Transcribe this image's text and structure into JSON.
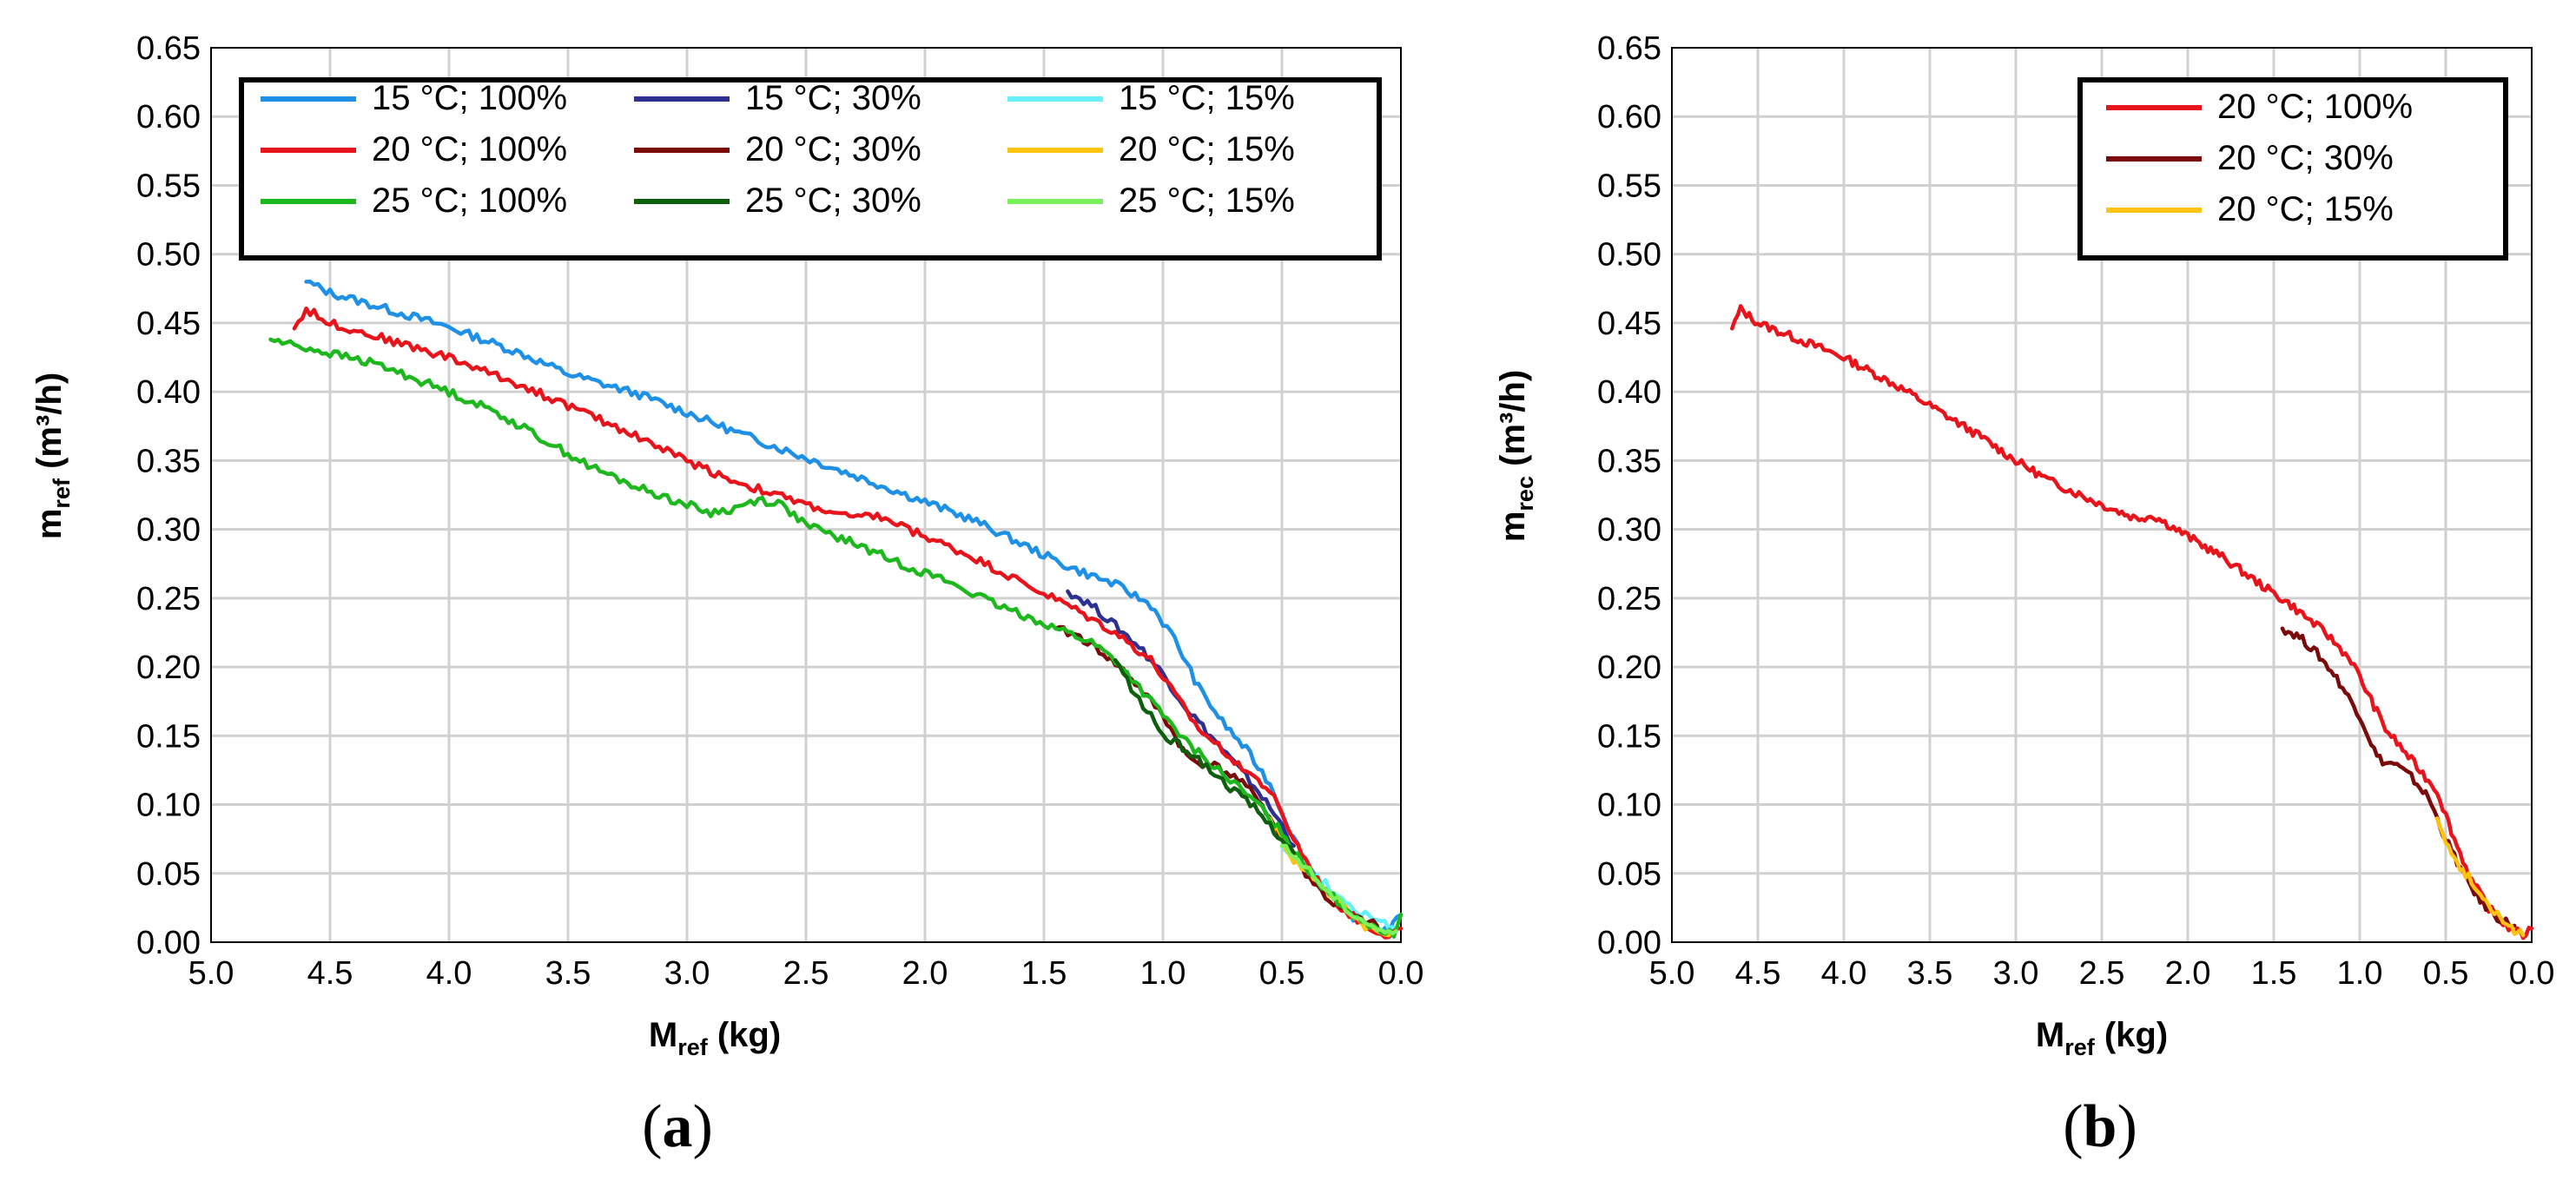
{
  "chart_data": [
    {
      "type": "line",
      "panel_label": "a",
      "xlabel": {
        "main": "M",
        "sub": "ref",
        "unit": " (kg)"
      },
      "ylabel": {
        "main": "m",
        "sub": "ref",
        "unit": " (m³/h)"
      },
      "xlim": [
        5.0,
        0.0
      ],
      "ylim": [
        0.0,
        0.65
      ],
      "x_reversed": true,
      "grid": true,
      "legend_position": "top",
      "xticks": [
        "5.0",
        "4.5",
        "4.0",
        "3.5",
        "3.0",
        "2.5",
        "2.0",
        "1.5",
        "1.0",
        "0.5",
        "0.0"
      ],
      "yticks": [
        "0.00",
        "0.05",
        "0.10",
        "0.15",
        "0.20",
        "0.25",
        "0.30",
        "0.35",
        "0.40",
        "0.45",
        "0.50",
        "0.55",
        "0.60",
        "0.65"
      ],
      "series": [
        {
          "name": "15 °C; 100%",
          "color": "#1E90E6",
          "points": [
            [
              4.6,
              0.48
            ],
            [
              4.5,
              0.472
            ],
            [
              4.3,
              0.462
            ],
            [
              4.0,
              0.447
            ],
            [
              3.7,
              0.428
            ],
            [
              3.5,
              0.413
            ],
            [
              3.2,
              0.398
            ],
            [
              3.0,
              0.385
            ],
            [
              2.8,
              0.371
            ],
            [
              2.5,
              0.352
            ],
            [
              2.2,
              0.333
            ],
            [
              2.0,
              0.32
            ],
            [
              1.8,
              0.307
            ],
            [
              1.6,
              0.29
            ],
            [
              1.4,
              0.273
            ],
            [
              1.2,
              0.26
            ],
            [
              1.05,
              0.245
            ],
            [
              0.95,
              0.22
            ],
            [
              0.85,
              0.185
            ],
            [
              0.75,
              0.16
            ],
            [
              0.65,
              0.14
            ],
            [
              0.55,
              0.115
            ],
            [
              0.45,
              0.075
            ],
            [
              0.35,
              0.045
            ],
            [
              0.25,
              0.025
            ],
            [
              0.15,
              0.012
            ],
            [
              0.05,
              0.008
            ],
            [
              0.0,
              0.02
            ]
          ]
        },
        {
          "name": "15 °C; 30%",
          "color": "#2E3192",
          "points": [
            [
              1.4,
              0.255
            ],
            [
              1.3,
              0.245
            ],
            [
              1.2,
              0.23
            ],
            [
              1.1,
              0.215
            ],
            [
              1.0,
              0.195
            ],
            [
              0.9,
              0.17
            ],
            [
              0.8,
              0.15
            ],
            [
              0.7,
              0.13
            ],
            [
              0.6,
              0.11
            ],
            [
              0.5,
              0.085
            ],
            [
              0.45,
              0.07
            ]
          ]
        },
        {
          "name": "15 °C; 15%",
          "color": "#66F0FF",
          "points": [
            [
              0.5,
              0.07
            ],
            [
              0.4,
              0.055
            ],
            [
              0.3,
              0.04
            ],
            [
              0.2,
              0.025
            ],
            [
              0.1,
              0.015
            ],
            [
              0.02,
              0.01
            ]
          ]
        },
        {
          "name": "20 °C; 100%",
          "color": "#E8141B",
          "points": [
            [
              4.65,
              0.446
            ],
            [
              4.6,
              0.46
            ],
            [
              4.5,
              0.45
            ],
            [
              4.3,
              0.44
            ],
            [
              4.0,
              0.425
            ],
            [
              3.7,
              0.405
            ],
            [
              3.5,
              0.39
            ],
            [
              3.2,
              0.367
            ],
            [
              3.0,
              0.35
            ],
            [
              2.8,
              0.335
            ],
            [
              2.5,
              0.318
            ],
            [
              2.3,
              0.308
            ],
            [
              2.2,
              0.31
            ],
            [
              2.0,
              0.295
            ],
            [
              1.8,
              0.28
            ],
            [
              1.6,
              0.262
            ],
            [
              1.4,
              0.245
            ],
            [
              1.2,
              0.225
            ],
            [
              1.05,
              0.205
            ],
            [
              0.95,
              0.18
            ],
            [
              0.85,
              0.155
            ],
            [
              0.75,
              0.14
            ],
            [
              0.65,
              0.125
            ],
            [
              0.55,
              0.11
            ],
            [
              0.45,
              0.075
            ],
            [
              0.35,
              0.045
            ],
            [
              0.25,
              0.025
            ],
            [
              0.15,
              0.012
            ],
            [
              0.05,
              0.005
            ],
            [
              0.0,
              0.01
            ]
          ]
        },
        {
          "name": "20 °C; 30%",
          "color": "#7B0A0A",
          "points": [
            [
              1.45,
              0.228
            ],
            [
              1.35,
              0.222
            ],
            [
              1.25,
              0.21
            ],
            [
              1.15,
              0.195
            ],
            [
              1.05,
              0.175
            ],
            [
              1.0,
              0.165
            ],
            [
              0.95,
              0.15
            ],
            [
              0.9,
              0.135
            ],
            [
              0.85,
              0.13
            ],
            [
              0.8,
              0.13
            ],
            [
              0.7,
              0.12
            ],
            [
              0.6,
              0.105
            ],
            [
              0.55,
              0.09
            ],
            [
              0.5,
              0.075
            ],
            [
              0.4,
              0.05
            ],
            [
              0.3,
              0.03
            ],
            [
              0.2,
              0.018
            ],
            [
              0.1,
              0.012
            ]
          ]
        },
        {
          "name": "20 °C; 15%",
          "color": "#FFC20E",
          "points": [
            [
              0.55,
              0.09
            ],
            [
              0.5,
              0.075
            ],
            [
              0.45,
              0.06
            ],
            [
              0.4,
              0.052
            ],
            [
              0.35,
              0.045
            ],
            [
              0.3,
              0.035
            ],
            [
              0.25,
              0.028
            ],
            [
              0.2,
              0.02
            ],
            [
              0.15,
              0.012
            ],
            [
              0.1,
              0.008
            ],
            [
              0.05,
              0.005
            ]
          ]
        },
        {
          "name": "25 °C; 100%",
          "color": "#1DB81D",
          "points": [
            [
              4.75,
              0.438
            ],
            [
              4.6,
              0.432
            ],
            [
              4.3,
              0.42
            ],
            [
              4.0,
              0.4
            ],
            [
              3.8,
              0.385
            ],
            [
              3.6,
              0.365
            ],
            [
              3.4,
              0.345
            ],
            [
              3.2,
              0.33
            ],
            [
              3.0,
              0.318
            ],
            [
              2.9,
              0.312
            ],
            [
              2.8,
              0.315
            ],
            [
              2.7,
              0.322
            ],
            [
              2.6,
              0.318
            ],
            [
              2.5,
              0.303
            ],
            [
              2.3,
              0.29
            ],
            [
              2.1,
              0.275
            ],
            [
              1.9,
              0.262
            ],
            [
              1.7,
              0.245
            ],
            [
              1.5,
              0.232
            ],
            [
              1.3,
              0.218
            ],
            [
              1.2,
              0.205
            ],
            [
              1.1,
              0.185
            ],
            [
              1.0,
              0.165
            ],
            [
              0.9,
              0.145
            ],
            [
              0.8,
              0.13
            ],
            [
              0.7,
              0.115
            ],
            [
              0.6,
              0.1
            ],
            [
              0.5,
              0.08
            ],
            [
              0.4,
              0.055
            ],
            [
              0.3,
              0.035
            ],
            [
              0.2,
              0.02
            ],
            [
              0.1,
              0.01
            ],
            [
              0.03,
              0.005
            ],
            [
              0.0,
              0.02
            ]
          ]
        },
        {
          "name": "25 °C; 30%",
          "color": "#0D5E0D",
          "points": [
            [
              1.2,
              0.205
            ],
            [
              1.15,
              0.19
            ],
            [
              1.1,
              0.175
            ],
            [
              1.05,
              0.165
            ],
            [
              1.0,
              0.15
            ],
            [
              0.95,
              0.145
            ],
            [
              0.9,
              0.14
            ],
            [
              0.8,
              0.125
            ],
            [
              0.7,
              0.11
            ],
            [
              0.6,
              0.095
            ],
            [
              0.5,
              0.075
            ],
            [
              0.45,
              0.065
            ]
          ]
        },
        {
          "name": "25 °C; 15%",
          "color": "#7CF25A",
          "points": [
            [
              0.5,
              0.07
            ],
            [
              0.45,
              0.062
            ],
            [
              0.4,
              0.055
            ],
            [
              0.35,
              0.045
            ],
            [
              0.3,
              0.035
            ],
            [
              0.25,
              0.028
            ],
            [
              0.2,
              0.02
            ],
            [
              0.15,
              0.015
            ],
            [
              0.1,
              0.01
            ],
            [
              0.05,
              0.006
            ],
            [
              0.02,
              0.008
            ]
          ]
        }
      ]
    },
    {
      "type": "line",
      "panel_label": "b",
      "xlabel": {
        "main": "M",
        "sub": "ref",
        "unit": " (kg)"
      },
      "ylabel": {
        "main": "m",
        "sub": "rec",
        "unit": " (m³/h)"
      },
      "xlim": [
        5.0,
        0.0
      ],
      "ylim": [
        0.0,
        0.65
      ],
      "x_reversed": true,
      "grid": true,
      "legend_position": "top-right",
      "xticks": [
        "5.0",
        "4.5",
        "4.0",
        "3.5",
        "3.0",
        "2.5",
        "2.0",
        "1.5",
        "1.0",
        "0.5",
        "0.0"
      ],
      "yticks": [
        "0.00",
        "0.05",
        "0.10",
        "0.15",
        "0.20",
        "0.25",
        "0.30",
        "0.35",
        "0.40",
        "0.45",
        "0.50",
        "0.55",
        "0.60",
        "0.65"
      ],
      "series": [
        {
          "name": "20 °C; 100%",
          "color": "#E8141B",
          "points": [
            [
              4.65,
              0.446
            ],
            [
              4.6,
              0.46
            ],
            [
              4.5,
              0.45
            ],
            [
              4.3,
              0.44
            ],
            [
              4.0,
              0.425
            ],
            [
              3.7,
              0.405
            ],
            [
              3.5,
              0.39
            ],
            [
              3.2,
              0.367
            ],
            [
              3.0,
              0.35
            ],
            [
              2.8,
              0.335
            ],
            [
              2.5,
              0.318
            ],
            [
              2.3,
              0.308
            ],
            [
              2.2,
              0.31
            ],
            [
              2.0,
              0.295
            ],
            [
              1.8,
              0.28
            ],
            [
              1.6,
              0.262
            ],
            [
              1.4,
              0.245
            ],
            [
              1.2,
              0.225
            ],
            [
              1.05,
              0.205
            ],
            [
              0.95,
              0.18
            ],
            [
              0.85,
              0.155
            ],
            [
              0.75,
              0.14
            ],
            [
              0.65,
              0.125
            ],
            [
              0.55,
              0.11
            ],
            [
              0.45,
              0.075
            ],
            [
              0.35,
              0.045
            ],
            [
              0.25,
              0.025
            ],
            [
              0.15,
              0.012
            ],
            [
              0.05,
              0.005
            ],
            [
              0.0,
              0.01
            ]
          ]
        },
        {
          "name": "20 °C; 30%",
          "color": "#7B0A0A",
          "points": [
            [
              1.45,
              0.228
            ],
            [
              1.35,
              0.222
            ],
            [
              1.25,
              0.21
            ],
            [
              1.15,
              0.195
            ],
            [
              1.05,
              0.175
            ],
            [
              1.0,
              0.165
            ],
            [
              0.95,
              0.15
            ],
            [
              0.9,
              0.135
            ],
            [
              0.85,
              0.13
            ],
            [
              0.8,
              0.13
            ],
            [
              0.7,
              0.12
            ],
            [
              0.6,
              0.105
            ],
            [
              0.55,
              0.09
            ],
            [
              0.5,
              0.075
            ],
            [
              0.4,
              0.05
            ],
            [
              0.3,
              0.03
            ],
            [
              0.2,
              0.018
            ],
            [
              0.1,
              0.012
            ]
          ]
        },
        {
          "name": "20 °C; 15%",
          "color": "#FFC20E",
          "points": [
            [
              0.55,
              0.09
            ],
            [
              0.5,
              0.075
            ],
            [
              0.45,
              0.06
            ],
            [
              0.4,
              0.052
            ],
            [
              0.35,
              0.045
            ],
            [
              0.3,
              0.035
            ],
            [
              0.25,
              0.028
            ],
            [
              0.2,
              0.02
            ],
            [
              0.15,
              0.012
            ],
            [
              0.1,
              0.008
            ],
            [
              0.05,
              0.005
            ]
          ]
        }
      ]
    }
  ]
}
